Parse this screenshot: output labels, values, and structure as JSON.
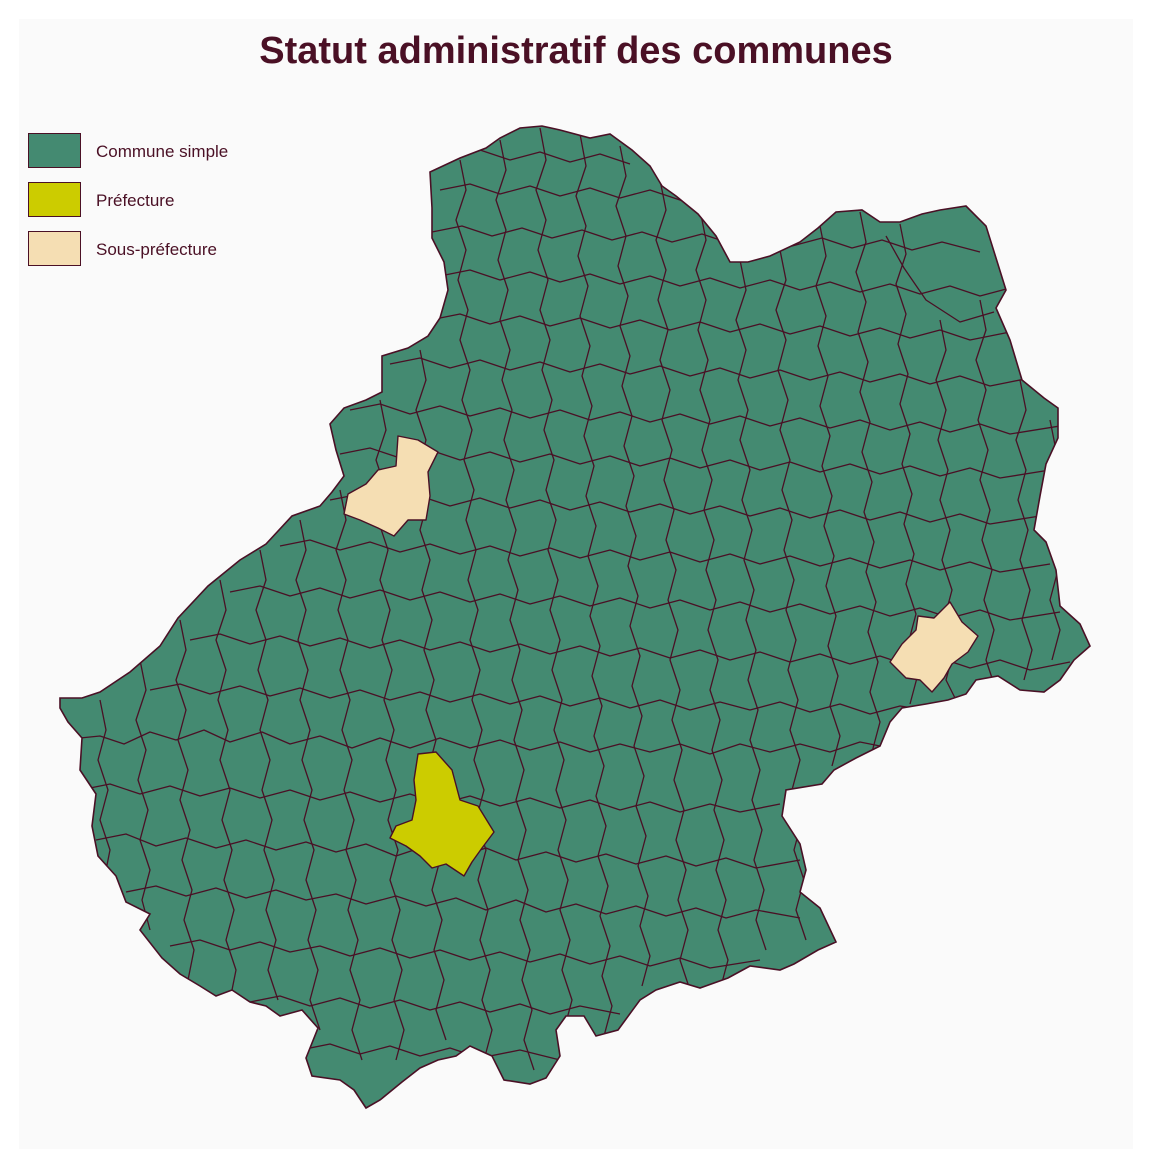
{
  "title": "Statut administratif des communes",
  "colors": {
    "commune_simple": "#448a71",
    "prefecture": "#cccc00",
    "sous_prefecture": "#f5deb3",
    "border": "#4a1025",
    "title": "#4a1025",
    "background": "#fafafa"
  },
  "legend": [
    {
      "label": "Commune simple",
      "color": "#448a71"
    },
    {
      "label": "Préfecture",
      "color": "#cccc00"
    },
    {
      "label": "Sous-préfecture",
      "color": "#f5deb3"
    }
  ]
}
